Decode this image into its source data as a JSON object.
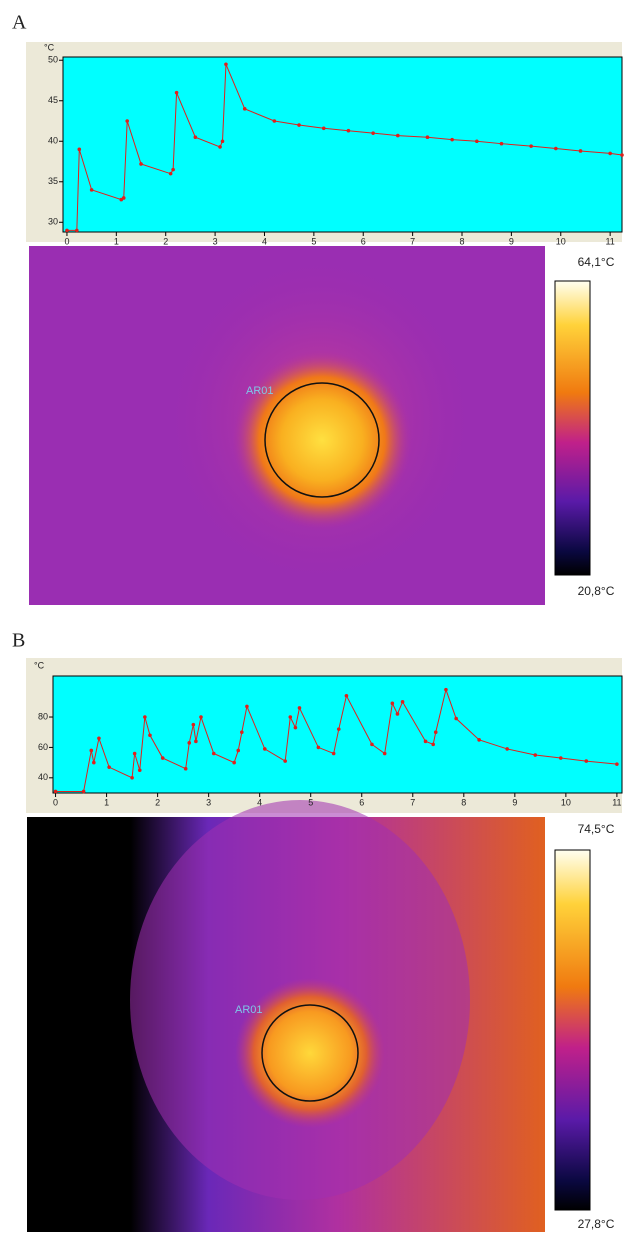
{
  "chart_data": [
    {
      "type": "line",
      "panel_label": "A",
      "y_unit": "°C",
      "xlim": [
        -0.08,
        11.24
      ],
      "ylim": [
        28.8,
        50.4
      ],
      "xticks": [
        0,
        1,
        2,
        3,
        4,
        5,
        6,
        7,
        8,
        9,
        10,
        11
      ],
      "yticks": [
        30,
        35,
        40,
        45,
        50
      ],
      "series": [
        {
          "color": "#e0201c",
          "x": [
            0,
            0.2,
            0.25,
            0.5,
            1.1,
            1.15,
            1.22,
            1.5,
            2.1,
            2.15,
            2.22,
            2.6,
            3.1,
            3.15,
            3.22,
            3.6,
            4.2,
            4.7,
            5.2,
            5.7,
            6.2,
            6.7,
            7.3,
            7.8,
            8.3,
            8.8,
            9.4,
            9.9,
            10.4,
            11,
            11.24
          ],
          "values": [
            29,
            29,
            39,
            34,
            32.8,
            33,
            42.5,
            37.2,
            36,
            36.5,
            46,
            40.5,
            39.3,
            40,
            49.5,
            44,
            42.5,
            42,
            41.6,
            41.3,
            41,
            40.7,
            40.5,
            40.2,
            40,
            39.7,
            39.4,
            39.1,
            38.8,
            38.5,
            38.3
          ]
        }
      ],
      "image": {
        "roi_label": "AR01",
        "scale_max_label": "64,1°C",
        "scale_min_label": "20,8°C"
      }
    },
    {
      "type": "line",
      "panel_label": "B",
      "y_unit": "°C",
      "xlim": [
        -0.05,
        11.1
      ],
      "ylim": [
        30,
        107
      ],
      "xticks": [
        0,
        1,
        2,
        3,
        4,
        5,
        6,
        7,
        8,
        9,
        10,
        11
      ],
      "yticks": [
        40,
        60,
        80
      ],
      "series": [
        {
          "color": "#e0201c",
          "x": [
            0,
            0.55,
            0.7,
            0.75,
            0.85,
            1.05,
            1.5,
            1.55,
            1.65,
            1.75,
            1.85,
            2.1,
            2.55,
            2.62,
            2.7,
            2.75,
            2.85,
            3.1,
            3.5,
            3.58,
            3.65,
            3.75,
            4.1,
            4.5,
            4.6,
            4.7,
            4.78,
            5.15,
            5.45,
            5.55,
            5.7,
            6.2,
            6.45,
            6.6,
            6.7,
            6.8,
            7.25,
            7.4,
            7.45,
            7.65,
            7.85,
            8.3,
            8.85,
            9.4,
            9.9,
            10.4,
            11
          ],
          "values": [
            31,
            31,
            58,
            50,
            66,
            47,
            40,
            56,
            45,
            80,
            68,
            53,
            46,
            63,
            75,
            64,
            80,
            56,
            50,
            58,
            70,
            87,
            59,
            51,
            80,
            73,
            86,
            60,
            56,
            72,
            94,
            62,
            56,
            89,
            82,
            90,
            64,
            62,
            70,
            98,
            79,
            65,
            59,
            55,
            53,
            51,
            49
          ]
        }
      ],
      "image": {
        "roi_label": "AR01",
        "scale_max_label": "74,5°C",
        "scale_min_label": "27,8°C"
      }
    }
  ]
}
